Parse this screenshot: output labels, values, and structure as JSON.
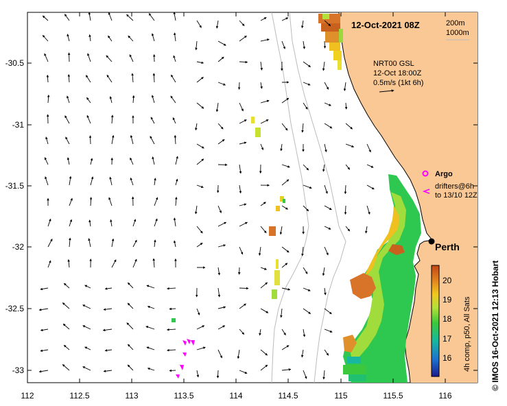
{
  "map": {
    "title": "12-Oct-2021 08Z",
    "legend_depth": {
      "line1": "200m",
      "line2": "1000m"
    },
    "current_info": {
      "line1": "NRT00 GSL",
      "line2": "12-Oct 18:00Z",
      "line3": "0.5m/s (1kt 6h)"
    },
    "argo_label": "Argo",
    "drifters_label": {
      "line1": "drifters@6h",
      "line2": "to 13/10 12Z"
    },
    "city_label": "Perth",
    "colorbar": {
      "ticks": [
        "20",
        "19",
        "18",
        "17",
        "16"
      ],
      "caption": "4h comp, p50, All Sats"
    },
    "credit": "© IMOS 16-Oct-2021 12:13 Hobart",
    "x_ticks": [
      "112",
      "112.5",
      "113",
      "113.5",
      "114",
      "114.5",
      "115",
      "115.5",
      "116"
    ],
    "y_ticks": [
      "-30.5",
      "-31",
      "-31.5",
      "-32",
      "-32.5",
      "-33"
    ],
    "colors": {
      "land": "#f9c895",
      "coast": "#000000",
      "isobath": "#bbbbbb",
      "drifter": "#ff00ff"
    }
  }
}
